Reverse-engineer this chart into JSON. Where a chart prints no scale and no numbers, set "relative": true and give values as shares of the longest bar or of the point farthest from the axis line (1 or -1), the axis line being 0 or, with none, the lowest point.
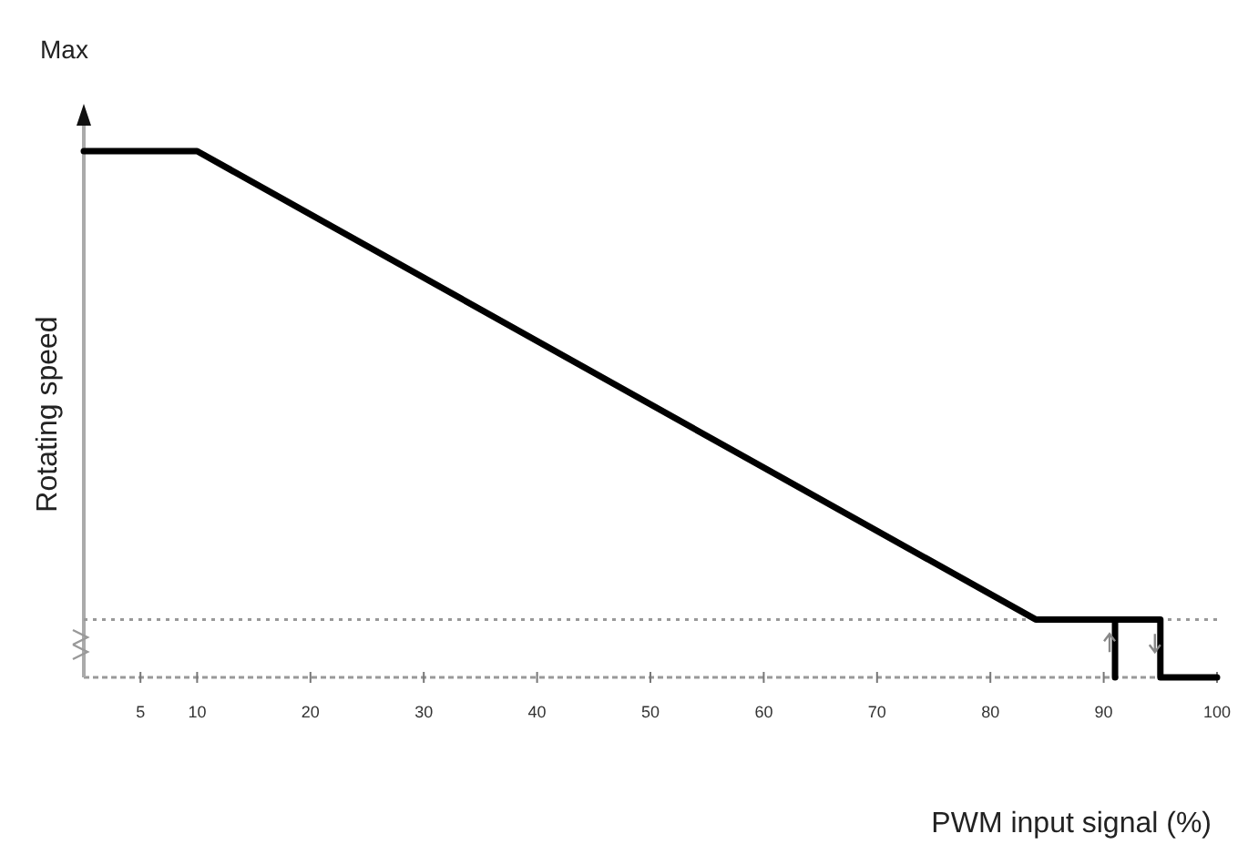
{
  "chart_data": {
    "type": "line",
    "relative": true,
    "xlabel": "PWM input signal (%)",
    "ylabel": "Rotating speed",
    "annotations": [
      "Max"
    ],
    "xlim": [
      0,
      100
    ],
    "xticks": [
      5,
      10,
      20,
      30,
      40,
      50,
      60,
      70,
      80,
      90,
      100
    ],
    "series": [
      {
        "color": "#000000",
        "x": [
          0,
          10,
          84,
          95,
          95,
          100
        ],
        "values": [
          1,
          1,
          0.11,
          0.11,
          0,
          0
        ]
      },
      {
        "color": "#000000",
        "x": [
          91,
          91
        ],
        "values": [
          0.11,
          0
        ]
      }
    ],
    "ref_lines": [
      {
        "axis": "y",
        "value": 0.11,
        "color": "#999999",
        "line_style": "dotted"
      }
    ],
    "line_style": "solid",
    "marker": "none",
    "grid": false
  }
}
